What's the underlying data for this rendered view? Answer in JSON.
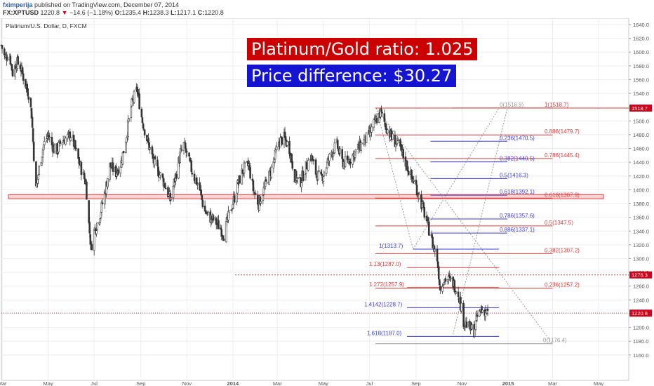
{
  "header": {
    "user": "fximperija",
    "published": "published on TradingView.com, December 07, 2014",
    "symbol": "FX:XPTUSD",
    "last": "1220.8",
    "change": "−14.6 (−1.18%)",
    "o_label": "O:",
    "o_value": "1235.4",
    "h_label": "H:",
    "h_value": "1238.3",
    "l_label": "L:",
    "l_value": "1217.1",
    "c_label": "C:",
    "c_value": "1220.8"
  },
  "chart_title": "Platinum/U.S. Dollar, D, FXCM",
  "annotations": {
    "ratio": "Platinum/Gold ratio: 1.025",
    "difference": "Price difference: $30.27"
  },
  "colors": {
    "up": "#ffffff",
    "down": "#333333",
    "fib_red": "#e03c3c",
    "fib_blue": "#3c3cdc",
    "zone_fill": "#f9d5d5",
    "box_red": "#cc0000",
    "box_blue": "#1414d2"
  },
  "chart_data": {
    "type": "candlestick",
    "title": "Platinum/U.S. Dollar, D, FXCM",
    "ylim": [
      1150,
      1845
    ],
    "y_ticks": [
      1160,
      1180,
      1200,
      1220,
      1240,
      1260,
      1280,
      1300,
      1320,
      1340,
      1360,
      1380,
      1400,
      1420,
      1440,
      1460,
      1480,
      1500,
      1520,
      1540,
      1560,
      1580,
      1600,
      1620,
      1640
    ],
    "x_tick_labels": [
      "Mar",
      "May",
      "Jul",
      "Sep",
      "Nov",
      "2014",
      "Mar",
      "May",
      "Jul",
      "Sep",
      "Nov",
      "2015",
      "Mar",
      "May"
    ],
    "x_tick_dates": [
      "2013-03-01",
      "2013-05-01",
      "2013-07-01",
      "2013-09-01",
      "2013-11-01",
      "2014-01-01",
      "2014-03-01",
      "2014-05-01",
      "2014-07-01",
      "2014-09-01",
      "2014-11-01",
      "2015-01-01",
      "2015-03-01",
      "2015-05-01"
    ],
    "x_range": [
      "2013-02-28",
      "2015-06-10"
    ],
    "close_path": [
      [
        "2013-02-28",
        1610
      ],
      [
        "2013-03-05",
        1590
      ],
      [
        "2013-03-10",
        1600
      ],
      [
        "2013-03-15",
        1570
      ],
      [
        "2013-03-20",
        1585
      ],
      [
        "2013-03-25",
        1580
      ],
      [
        "2013-03-30",
        1560
      ],
      [
        "2013-04-05",
        1540
      ],
      [
        "2013-04-09",
        1510
      ],
      [
        "2013-04-12",
        1450
      ],
      [
        "2013-04-15",
        1400
      ],
      [
        "2013-04-19",
        1430
      ],
      [
        "2013-04-25",
        1465
      ],
      [
        "2013-05-01",
        1480
      ],
      [
        "2013-05-06",
        1465
      ],
      [
        "2013-05-12",
        1455
      ],
      [
        "2013-05-18",
        1470
      ],
      [
        "2013-05-25",
        1475
      ],
      [
        "2013-06-01",
        1480
      ],
      [
        "2013-06-08",
        1450
      ],
      [
        "2013-06-14",
        1430
      ],
      [
        "2013-06-20",
        1410
      ],
      [
        "2013-06-24",
        1350
      ],
      [
        "2013-06-27",
        1315
      ],
      [
        "2013-07-01",
        1340
      ],
      [
        "2013-07-08",
        1360
      ],
      [
        "2013-07-15",
        1395
      ],
      [
        "2013-07-22",
        1435
      ],
      [
        "2013-07-30",
        1425
      ],
      [
        "2013-08-06",
        1440
      ],
      [
        "2013-08-13",
        1480
      ],
      [
        "2013-08-19",
        1520
      ],
      [
        "2013-08-23",
        1535
      ],
      [
        "2013-08-27",
        1545
      ],
      [
        "2013-09-03",
        1500
      ],
      [
        "2013-09-10",
        1470
      ],
      [
        "2013-09-18",
        1440
      ],
      [
        "2013-09-25",
        1425
      ],
      [
        "2013-10-02",
        1410
      ],
      [
        "2013-10-10",
        1385
      ],
      [
        "2013-10-17",
        1420
      ],
      [
        "2013-10-23",
        1450
      ],
      [
        "2013-10-28",
        1465
      ],
      [
        "2013-11-04",
        1440
      ],
      [
        "2013-11-10",
        1420
      ],
      [
        "2013-11-17",
        1405
      ],
      [
        "2013-11-24",
        1370
      ],
      [
        "2013-12-01",
        1360
      ],
      [
        "2013-12-08",
        1355
      ],
      [
        "2013-12-15",
        1345
      ],
      [
        "2013-12-20",
        1335
      ],
      [
        "2013-12-26",
        1360
      ],
      [
        "2014-01-02",
        1385
      ],
      [
        "2014-01-08",
        1410
      ],
      [
        "2014-01-15",
        1430
      ],
      [
        "2014-01-22",
        1435
      ],
      [
        "2014-01-28",
        1400
      ],
      [
        "2014-02-04",
        1380
      ],
      [
        "2014-02-11",
        1400
      ],
      [
        "2014-02-18",
        1420
      ],
      [
        "2014-02-24",
        1440
      ],
      [
        "2014-03-03",
        1470
      ],
      [
        "2014-03-10",
        1475
      ],
      [
        "2014-03-17",
        1460
      ],
      [
        "2014-03-24",
        1420
      ],
      [
        "2014-03-31",
        1410
      ],
      [
        "2014-04-07",
        1430
      ],
      [
        "2014-04-14",
        1450
      ],
      [
        "2014-04-21",
        1425
      ],
      [
        "2014-04-28",
        1415
      ],
      [
        "2014-05-05",
        1435
      ],
      [
        "2014-05-12",
        1455
      ],
      [
        "2014-05-19",
        1465
      ],
      [
        "2014-05-26",
        1440
      ],
      [
        "2014-06-02",
        1440
      ],
      [
        "2014-06-09",
        1450
      ],
      [
        "2014-06-16",
        1460
      ],
      [
        "2014-06-23",
        1470
      ],
      [
        "2014-06-30",
        1478
      ],
      [
        "2014-07-07",
        1495
      ],
      [
        "2014-07-12",
        1505
      ],
      [
        "2014-07-16",
        1512
      ],
      [
        "2014-07-22",
        1495
      ],
      [
        "2014-07-28",
        1480
      ],
      [
        "2014-08-04",
        1470
      ],
      [
        "2014-08-11",
        1460
      ],
      [
        "2014-08-18",
        1440
      ],
      [
        "2014-08-25",
        1420
      ],
      [
        "2014-09-01",
        1405
      ],
      [
        "2014-09-08",
        1380
      ],
      [
        "2014-09-15",
        1355
      ],
      [
        "2014-09-22",
        1325
      ],
      [
        "2014-09-29",
        1300
      ],
      [
        "2014-10-03",
        1255
      ],
      [
        "2014-10-07",
        1270
      ],
      [
        "2014-10-13",
        1270
      ],
      [
        "2014-10-20",
        1265
      ],
      [
        "2014-10-27",
        1250
      ],
      [
        "2014-11-03",
        1210
      ],
      [
        "2014-11-10",
        1200
      ],
      [
        "2014-11-17",
        1195
      ],
      [
        "2014-11-21",
        1215
      ],
      [
        "2014-11-26",
        1225
      ],
      [
        "2014-12-01",
        1225
      ],
      [
        "2014-12-05",
        1220.8
      ]
    ],
    "current_price": 1220.8,
    "ratio_price": 1276.3,
    "price_badges": [
      "1518.7",
      "1276.3",
      "1220.8"
    ],
    "support_zone": [
      1387,
      1393
    ],
    "fib_levels": [
      {
        "label": "0(1518.9)",
        "price": 1518.9,
        "color": "gray",
        "start": "2014-10-20",
        "end": "2015-03-01"
      },
      {
        "label": "1(1518.7)",
        "price": 1518.7,
        "color": "red",
        "start": "2014-07-09",
        "end": "2015-06-10"
      },
      {
        "label": "0.886(1479.7)",
        "price": 1479.7,
        "color": "red",
        "start": "2014-07-09",
        "end": "2015-03-01"
      },
      {
        "label": "0.236(1470.5)",
        "price": 1470.5,
        "color": "blue",
        "start": "2014-09-20",
        "end": "2014-12-31"
      },
      {
        "label": "0.786(1445.4)",
        "price": 1445.4,
        "color": "red",
        "start": "2014-07-09",
        "end": "2015-03-01"
      },
      {
        "label": "0.382(1440.5)",
        "price": 1440.5,
        "color": "blue",
        "start": "2014-09-20",
        "end": "2014-12-31"
      },
      {
        "label": "0.5(1416.3)",
        "price": 1416.3,
        "color": "blue",
        "start": "2014-09-20",
        "end": "2014-12-31"
      },
      {
        "label": "0.618(1392.1)",
        "price": 1392.1,
        "color": "blue",
        "start": "2014-09-20",
        "end": "2014-12-31"
      },
      {
        "label": "0.618(1387.9)",
        "price": 1387.9,
        "color": "red",
        "start": "2014-07-09",
        "end": "2015-03-01"
      },
      {
        "label": "0.786(1357.6)",
        "price": 1357.6,
        "color": "blue",
        "start": "2014-09-20",
        "end": "2014-12-31"
      },
      {
        "label": "0.5(1347.5)",
        "price": 1347.5,
        "color": "red",
        "start": "2014-07-09",
        "end": "2015-03-01"
      },
      {
        "label": "0.886(1337.1)",
        "price": 1337.1,
        "color": "blue",
        "start": "2014-09-20",
        "end": "2014-12-31"
      },
      {
        "label": "1(1313.7)",
        "price": 1313.7,
        "color": "blue",
        "start": "2014-08-28",
        "end": "2014-12-20"
      },
      {
        "label": "0.382(1307.2)",
        "price": 1307.2,
        "color": "red",
        "start": "2014-07-09",
        "end": "2015-03-01"
      },
      {
        "label": "1.13(1287.0)",
        "price": 1287.0,
        "color": "red",
        "start": "2014-08-20",
        "end": "2014-12-20"
      },
      {
        "label": "1.272(1257.9)",
        "price": 1257.9,
        "color": "red",
        "start": "2014-08-20",
        "end": "2014-12-20"
      },
      {
        "label": "0.236(1257.2)",
        "price": 1257.2,
        "color": "red",
        "start": "2014-07-09",
        "end": "2015-03-01"
      },
      {
        "label": "1.4142(1228.7)",
        "price": 1228.7,
        "color": "blue",
        "start": "2014-08-20",
        "end": "2014-12-20"
      },
      {
        "label": "1.618(1187.0)",
        "price": 1187.0,
        "color": "blue",
        "start": "2014-08-20",
        "end": "2014-12-20"
      },
      {
        "label": "0(1176.4)",
        "price": 1176.4,
        "color": "gray",
        "start": "2014-07-09",
        "end": "2015-03-01"
      }
    ],
    "trend_lines": [
      {
        "from": [
          "2014-07-10",
          1518.7
        ],
        "to": [
          "2015-03-01",
          1176.4
        ],
        "style": "dotted"
      },
      {
        "from": [
          "2014-07-10",
          1518.7
        ],
        "to": [
          "2014-08-28",
          1313.7
        ],
        "style": "dotted"
      },
      {
        "from": [
          "2014-08-28",
          1313.7
        ],
        "to": [
          "2014-12-20",
          1518.9
        ],
        "style": "dotted"
      },
      {
        "from": [
          "2014-10-20",
          1190
        ],
        "to": [
          "2014-12-31",
          1518.9
        ],
        "style": "dotted"
      }
    ]
  }
}
